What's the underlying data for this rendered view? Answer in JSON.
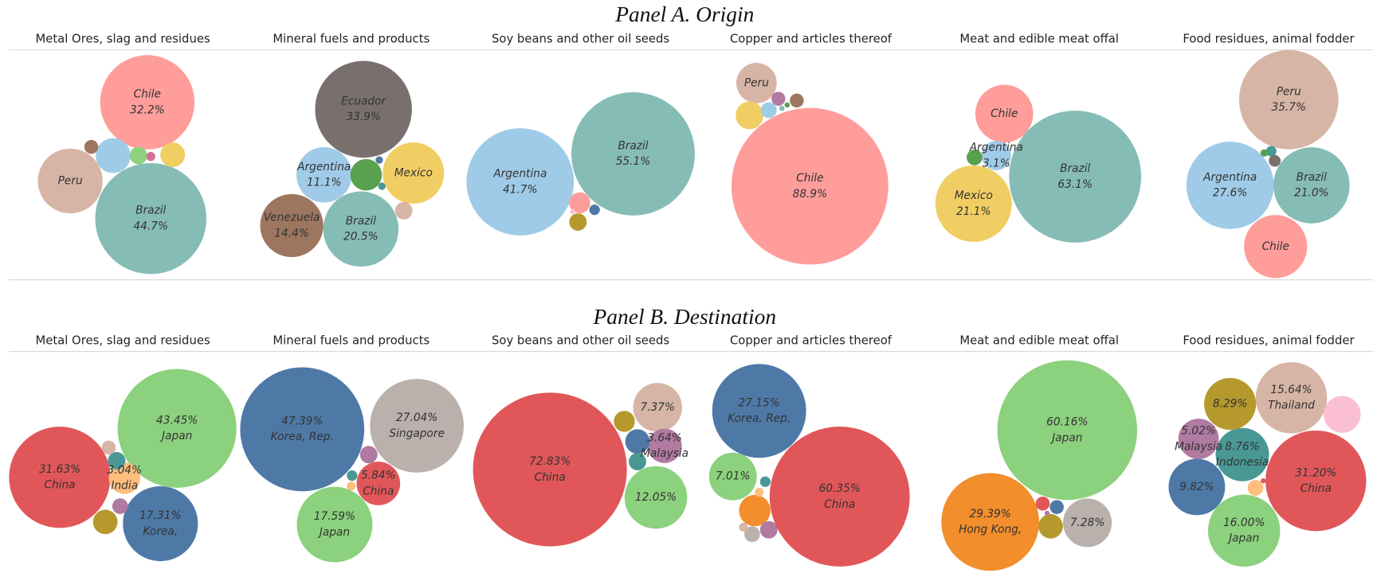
{
  "panel_titles": [
    "Panel A. Origin",
    "Panel B. Destination"
  ],
  "chart_data": [
    {
      "type": "bubble",
      "title": "Metal Ores, slag and residues",
      "categories": [
        "Chile",
        "Brazil",
        "Peru",
        null,
        null,
        null,
        null,
        null
      ],
      "values": [
        32.2,
        44.7,
        15.2,
        4.4,
        2.2,
        1.1,
        0.7,
        0.3
      ],
      "value_labels": [
        "32.2%",
        "44.7%",
        null,
        null,
        null,
        null,
        null,
        null
      ],
      "colors": [
        "#ff9d9a",
        "#86bcb6",
        "#d7b5a6",
        "#a0cbe8",
        "#f1ce63",
        "#8cd17d",
        "#9d7660",
        "#d37295"
      ]
    },
    {
      "type": "bubble",
      "title": "Mineral fuels and products",
      "categories": [
        "Ecuador",
        "Argentina",
        "Mexico",
        "Venezuela",
        "Brazil",
        null,
        null,
        null,
        null
      ],
      "values": [
        33.9,
        11.1,
        13.6,
        14.4,
        20.5,
        3.6,
        1.1,
        0.2,
        0.2
      ],
      "value_labels": [
        "33.9%",
        "11.1%",
        null,
        "14.4%",
        "20.5%",
        null,
        null,
        null,
        null
      ],
      "colors": [
        "#79706e",
        "#a0cbe8",
        "#f1ce63",
        "#9d7660",
        "#86bcb6",
        "#59a14f",
        "#d7b5a6",
        "#4e79a7",
        "#499894"
      ]
    },
    {
      "type": "bubble",
      "title": "Soy beans and other oil seeds",
      "categories": [
        "Argentina",
        "Brazil",
        null,
        null,
        null,
        null
      ],
      "values": [
        41.7,
        55.1,
        1.6,
        1.1,
        0.4,
        0.1
      ],
      "value_labels": [
        "41.7%",
        "55.1%",
        null,
        null,
        null,
        null
      ],
      "colors": [
        "#a0cbe8",
        "#86bcb6",
        "#ff9d9a",
        "#b6992d",
        "#4e79a7",
        "#fabfd2"
      ]
    },
    {
      "type": "bubble",
      "title": "Copper and articles thereof",
      "categories": [
        "Chile",
        "Peru",
        null,
        null,
        null,
        null,
        null,
        null
      ],
      "values": [
        88.9,
        5.9,
        2.8,
        0.9,
        0.7,
        0.7,
        0.1,
        0.1
      ],
      "value_labels": [
        "88.9%",
        null,
        null,
        null,
        null,
        null,
        null,
        null
      ],
      "colors": [
        "#ff9d9a",
        "#d7b5a6",
        "#f1ce63",
        "#a0cbe8",
        "#b07aa1",
        "#9d7660",
        "#59a14f",
        "#86bcb6"
      ]
    },
    {
      "type": "bubble",
      "title": "Meat and edible meat offal",
      "categories": [
        "Chile",
        "Argentina",
        null,
        "Mexico",
        "Brazil"
      ],
      "values": [
        12.1,
        3.1,
        0.9,
        21.1,
        63.1
      ],
      "value_labels": [
        null,
        "3.1%",
        null,
        "21.1%",
        "63.1%"
      ],
      "colors": [
        "#ff9d9a",
        "#a0cbe8",
        "#59a14f",
        "#f1ce63",
        "#86bcb6"
      ]
    },
    {
      "type": "bubble",
      "title": "Food residues, animal fodder",
      "categories": [
        "Peru",
        "Argentina",
        "Brazil",
        "Chile",
        null,
        null,
        null
      ],
      "values": [
        35.7,
        27.6,
        21.0,
        14.4,
        0.4,
        0.5,
        0.2
      ],
      "value_labels": [
        "35.7%",
        "27.6%",
        "21.0%",
        null,
        null,
        null,
        null
      ],
      "colors": [
        "#d7b5a6",
        "#a0cbe8",
        "#86bcb6",
        "#ff9d9a",
        "#499894",
        "#79706e",
        "#59a14f"
      ]
    },
    {
      "type": "bubble",
      "title": "Metal Ores, slag and residues",
      "categories": [
        "China",
        "Japan",
        "Korea,",
        "India",
        null,
        null,
        null,
        null
      ],
      "values": [
        31.63,
        43.45,
        17.31,
        3.04,
        1.85,
        0.76,
        0.94,
        0.6
      ],
      "value_labels": [
        "31.63%",
        "43.45%",
        "17.31%",
        "3.04%",
        null,
        null,
        null,
        null
      ],
      "colors": [
        "#e15759",
        "#8cd17d",
        "#4e79a7",
        "#ffbe7d",
        "#b6992d",
        "#b07aa1",
        "#499894",
        "#d7b5a6"
      ]
    },
    {
      "type": "bubble",
      "title": "Mineral fuels and products",
      "categories": [
        "Korea, Rep.",
        "Singapore",
        "Japan",
        "China",
        null,
        null,
        null
      ],
      "values": [
        47.39,
        27.04,
        17.59,
        5.84,
        0.94,
        0.34,
        0.24
      ],
      "value_labels": [
        "47.39%",
        "27.04%",
        "17.59%",
        "5.84%",
        null,
        null,
        null
      ],
      "colors": [
        "#4e79a7",
        "#bab0ac",
        "#8cd17d",
        "#e15759",
        "#b07aa1",
        "#499894",
        "#ffbe7d"
      ]
    },
    {
      "type": "bubble",
      "title": "Soy beans and other oil seeds",
      "categories": [
        "China",
        null,
        null,
        "Malaysia",
        null,
        null,
        null
      ],
      "values": [
        72.83,
        12.05,
        7.37,
        3.64,
        1.36,
        1.85,
        0.94
      ],
      "value_labels": [
        "72.83%",
        "12.05%",
        "7.37%",
        "3.64%",
        null,
        null,
        null
      ],
      "colors": [
        "#e15759",
        "#8cd17d",
        "#d7b5a6",
        "#b07aa1",
        "#b6992d",
        "#4e79a7",
        "#499894"
      ]
    },
    {
      "type": "bubble",
      "title": "Copper and articles thereof",
      "categories": [
        "China",
        "Korea, Rep.",
        null,
        null,
        null,
        null,
        null,
        null,
        null
      ],
      "values": [
        60.35,
        27.15,
        7.01,
        3.05,
        0.94,
        0.76,
        0.34,
        0.24,
        0.24
      ],
      "value_labels": [
        "60.35%",
        "27.15%",
        "7.01%",
        null,
        null,
        null,
        null,
        null,
        null
      ],
      "colors": [
        "#e15759",
        "#4e79a7",
        "#8cd17d",
        "#f28e2b",
        "#b07aa1",
        "#bab0ac",
        "#499894",
        "#d7b5a6",
        "#ffbe7d"
      ]
    },
    {
      "type": "bubble",
      "title": "Meat and edible meat offal",
      "categories": [
        "Japan",
        "Hong Kong,",
        null,
        null,
        null,
        null,
        null
      ],
      "values": [
        60.16,
        29.39,
        7.28,
        1.85,
        0.6,
        0.6,
        0.08
      ],
      "value_labels": [
        "60.16%",
        "29.39%",
        "7.28%",
        null,
        null,
        null,
        null
      ],
      "colors": [
        "#8cd17d",
        "#f28e2b",
        "#bab0ac",
        "#b6992d",
        "#e15759",
        "#4e79a7",
        "#b07aa1"
      ]
    },
    {
      "type": "bubble",
      "title": "Food residues, animal fodder",
      "categories": [
        "Thailand",
        "China",
        "Japan",
        null,
        "Indonesia",
        null,
        "Malaysia",
        null,
        null,
        null
      ],
      "values": [
        15.64,
        31.2,
        16.0,
        9.82,
        8.76,
        8.29,
        5.02,
        4.2,
        0.76,
        0.08
      ],
      "value_labels": [
        "15.64%",
        "31.20%",
        "16.00%",
        "9.82%",
        "8.76%",
        "8.29%",
        "5.02%",
        null,
        null,
        null
      ],
      "colors": [
        "#d7b5a6",
        "#e15759",
        "#8cd17d",
        "#4e79a7",
        "#499894",
        "#b6992d",
        "#b07aa1",
        "#fabfd2",
        "#ffbe7d",
        "#e15759"
      ]
    }
  ]
}
